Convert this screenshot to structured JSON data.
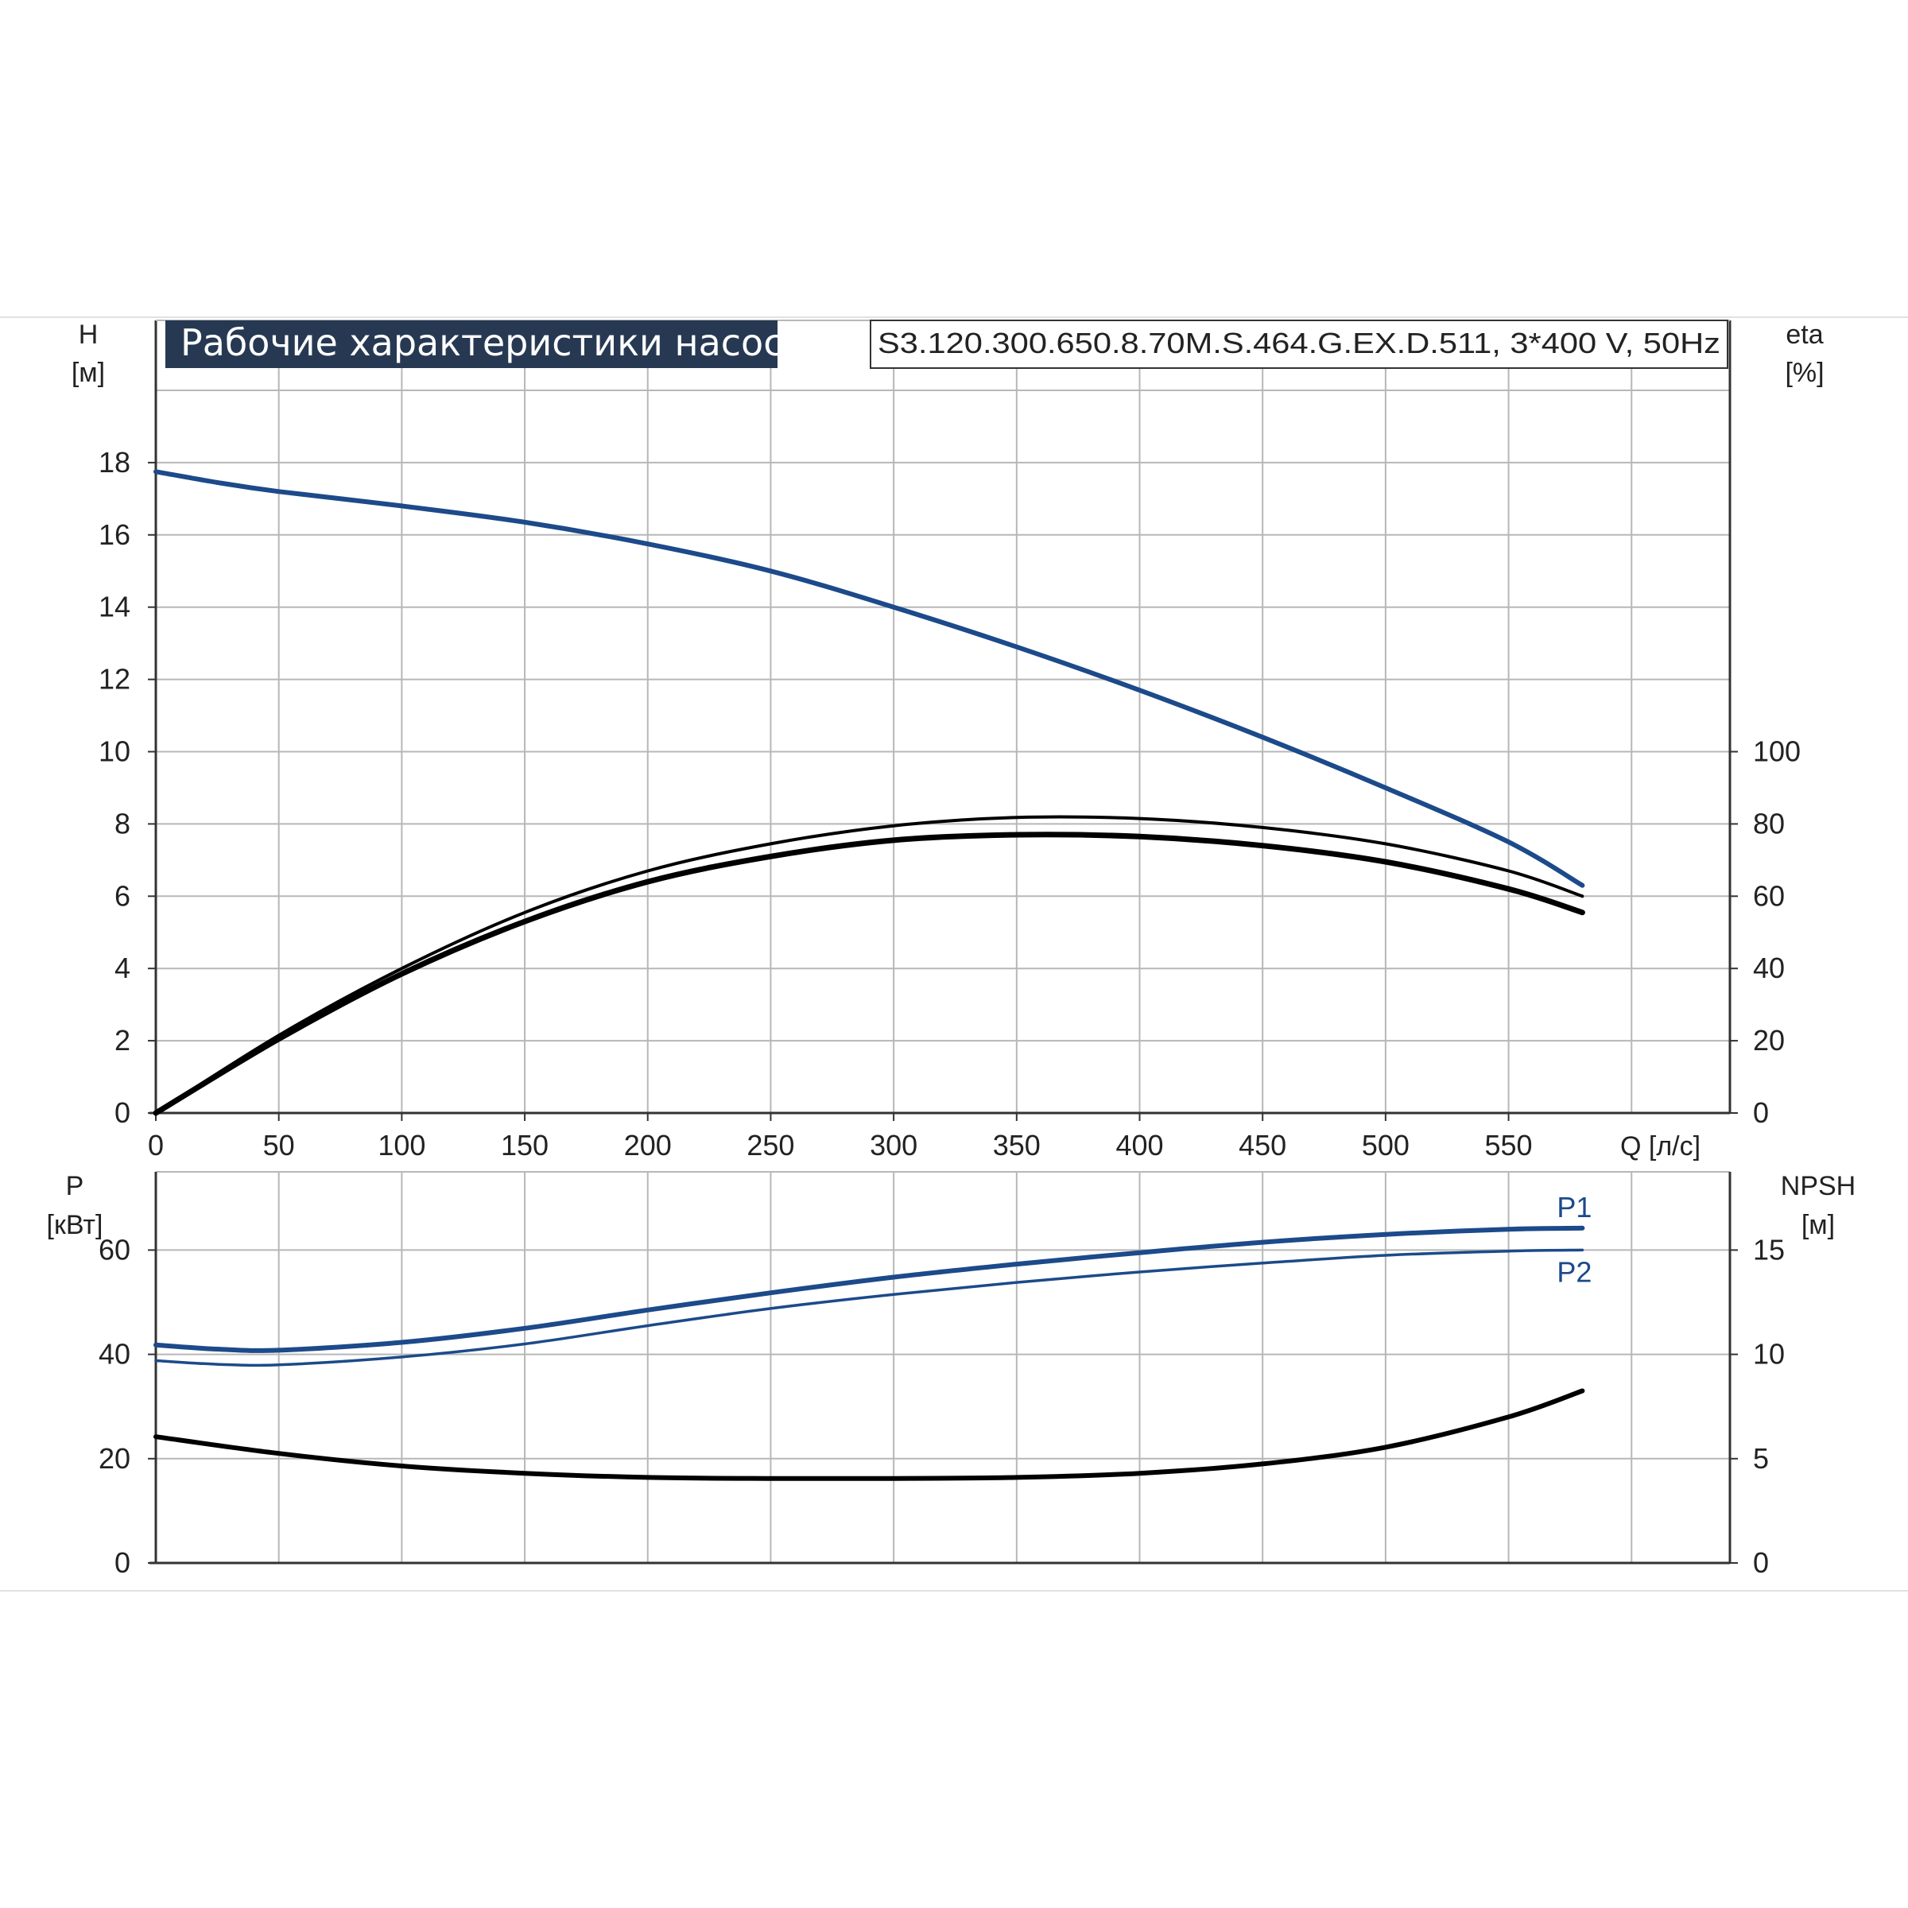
{
  "colors": {
    "background": "#ffffff",
    "grid": "#b7b7b7",
    "axis": "#333333",
    "title_bg": "#273952",
    "title_text": "#ffffff",
    "blue_curve": "#1c4a8a",
    "black_curve": "#000000",
    "text": "#222222"
  },
  "header": {
    "title": "Рабочие характеристики насоса",
    "model": "S3.120.300.650.8.70M.S.464.G.EX.D.511, 3*400 V, 50Hz"
  },
  "chart_data": [
    {
      "type": "line",
      "name": "head-and-efficiency",
      "x_ticks": [
        "0",
        "50",
        "100",
        "150",
        "200",
        "250",
        "300",
        "350",
        "400",
        "450",
        "500",
        "550"
      ],
      "x_label": "Q [л/с]",
      "xlim": [
        0,
        640
      ],
      "y_label_left": [
        "H",
        "[м]"
      ],
      "y_ticks_left": [
        "0",
        "2",
        "4",
        "6",
        "8",
        "10",
        "12",
        "14",
        "16",
        "18"
      ],
      "ylim_left": [
        0,
        20
      ],
      "y_label_right": [
        "eta",
        "[%]"
      ],
      "y_ticks_right": [
        "0",
        "20",
        "40",
        "60",
        "80",
        "100"
      ],
      "ylim_right": [
        0,
        200
      ],
      "grid": true,
      "series": [
        {
          "color": "blue_curve",
          "axis": "left",
          "x": [
            0,
            25,
            50,
            100,
            150,
            200,
            250,
            300,
            350,
            400,
            450,
            500,
            550,
            580
          ],
          "y": [
            17.75,
            17.45,
            17.2,
            16.8,
            16.35,
            15.75,
            15.0,
            14.0,
            12.9,
            11.7,
            10.4,
            9.0,
            7.5,
            6.3
          ]
        },
        {
          "color": "black_curve",
          "axis": "right",
          "x": [
            0,
            50,
            100,
            150,
            200,
            250,
            300,
            350,
            400,
            450,
            500,
            550,
            580
          ],
          "y": [
            0,
            21.5,
            40,
            55.5,
            67,
            74.5,
            79.5,
            81.8,
            81.5,
            79,
            74.5,
            67,
            60
          ]
        },
        {
          "color": "black_curve",
          "axis": "right",
          "x": [
            0,
            50,
            100,
            150,
            200,
            250,
            300,
            350,
            400,
            450,
            500,
            550,
            580
          ],
          "y": [
            0,
            20.5,
            38.5,
            53,
            64,
            71,
            75.5,
            77,
            76.5,
            74,
            69.5,
            62,
            55.5
          ]
        }
      ]
    },
    {
      "type": "line",
      "name": "power-and-npsh",
      "y_label_left": [
        "P",
        "[кВт]"
      ],
      "y_ticks_left": [
        "0",
        "20",
        "40",
        "60"
      ],
      "ylim_left": [
        0,
        75
      ],
      "y_label_right": [
        "NPSH",
        "[м]"
      ],
      "y_ticks_right": [
        "0",
        "5",
        "10",
        "15"
      ],
      "ylim_right": [
        0,
        18.75
      ],
      "xlim": [
        0,
        640
      ],
      "grid": true,
      "series": [
        {
          "name": "P1",
          "color": "blue_curve",
          "axis": "left",
          "x": [
            0,
            25,
            50,
            100,
            150,
            200,
            250,
            300,
            350,
            400,
            450,
            500,
            550,
            580
          ],
          "y": [
            41.8,
            41.0,
            40.8,
            42.3,
            45.0,
            48.5,
            51.8,
            54.8,
            57.3,
            59.5,
            61.5,
            63.0,
            64.0,
            64.2
          ]
        },
        {
          "name": "P2",
          "color": "blue_curve",
          "axis": "left",
          "x": [
            0,
            25,
            50,
            100,
            150,
            200,
            250,
            300,
            350,
            400,
            450,
            500,
            550,
            580
          ],
          "y": [
            38.8,
            38.1,
            38.0,
            39.5,
            42.0,
            45.5,
            48.8,
            51.5,
            53.8,
            55.8,
            57.5,
            59.0,
            59.8,
            60.0
          ]
        },
        {
          "color": "black_curve",
          "axis": "right",
          "x": [
            0,
            50,
            100,
            150,
            200,
            250,
            300,
            350,
            400,
            450,
            500,
            550,
            580
          ],
          "y": [
            6.05,
            5.25,
            4.65,
            4.3,
            4.1,
            4.05,
            4.05,
            4.1,
            4.3,
            4.75,
            5.55,
            7.0,
            8.25
          ]
        }
      ]
    }
  ]
}
